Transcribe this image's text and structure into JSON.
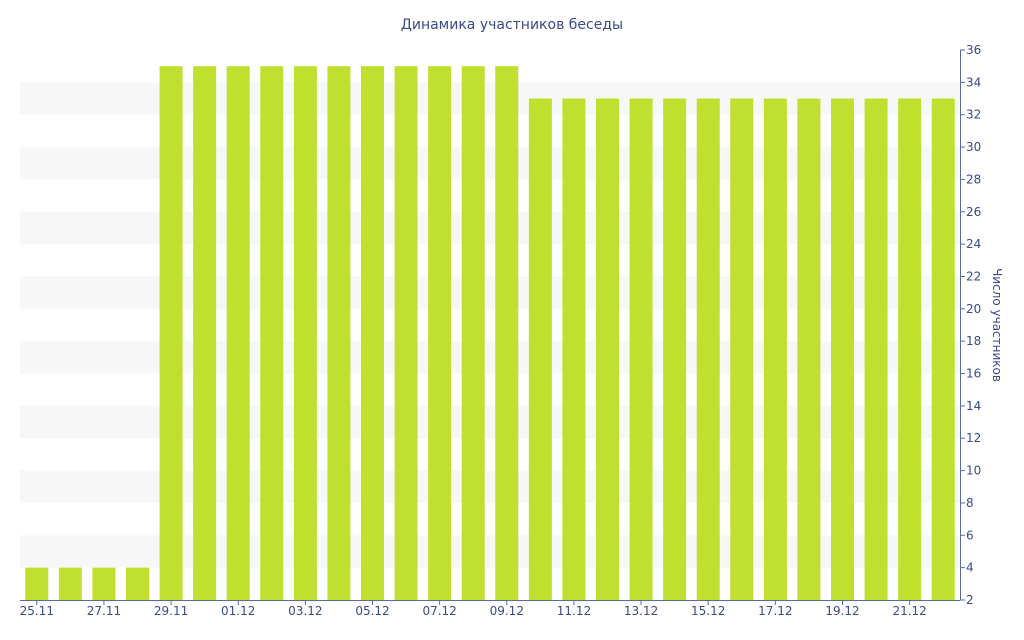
{
  "chart_data": {
    "type": "bar",
    "title": "Динамика участников беседы",
    "ylabel": "Число участников",
    "xlabel": "",
    "ylim": [
      2,
      36
    ],
    "yticks": [
      2,
      4,
      6,
      8,
      10,
      12,
      14,
      16,
      18,
      20,
      22,
      24,
      26,
      28,
      30,
      32,
      34,
      36
    ],
    "y_axis_side": "right",
    "grid": "alternating horizontal bands",
    "categories": [
      "25.11",
      "26.11",
      "27.11",
      "28.11",
      "29.11",
      "30.11",
      "01.12",
      "02.12",
      "03.12",
      "04.12",
      "05.12",
      "06.12",
      "07.12",
      "08.12",
      "09.12",
      "10.12",
      "11.12",
      "12.12",
      "13.12",
      "14.12",
      "15.12",
      "16.12",
      "17.12",
      "18.12",
      "19.12",
      "20.12",
      "21.12",
      "22.12"
    ],
    "x_tick_labels": [
      "25.11",
      "27.11",
      "29.11",
      "01.12",
      "03.12",
      "05.12",
      "07.12",
      "09.12",
      "11.12",
      "13.12",
      "15.12",
      "17.12",
      "19.12",
      "21.12"
    ],
    "values": [
      4,
      4,
      4,
      4,
      35,
      35,
      35,
      35,
      35,
      35,
      35,
      35,
      35,
      35,
      35,
      33,
      33,
      33,
      33,
      33,
      33,
      33,
      33,
      33,
      33,
      33,
      33,
      33
    ],
    "bar_color": "#bfe02e",
    "band_color": "#f7f7f7",
    "text_color": "#3a4a8a",
    "axis_color": "#5a6a9a"
  }
}
